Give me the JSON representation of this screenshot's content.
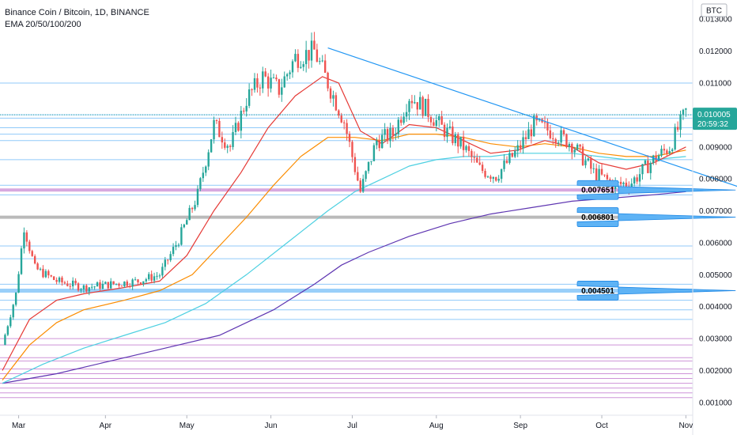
{
  "header": {
    "title": "Binance Coin / Bitcoin, 1D, BINANCE",
    "indicator": "EMA 20/50/100/200"
  },
  "currency_badge": "BTC",
  "price_label": {
    "price": "0.010005",
    "countdown": "20:59:32"
  },
  "colors": {
    "up": "#26a69a",
    "down": "#ef5350",
    "ema20": "#e53935",
    "ema50": "#fb8c00",
    "ema100": "#4dd0e1",
    "ema200": "#5e35b1",
    "trendline": "#2196f3",
    "callout": "#5eb3f5",
    "price_badge": "#26a69a",
    "hline_blue": "#90caf9",
    "hline_pink": "#ce93d8",
    "hline_gray": "#9e9e9e"
  },
  "chart_data": {
    "type": "line",
    "title": "Binance Coin / Bitcoin, 1D, BINANCE",
    "y_ticks": [
      "0.001000",
      "0.002000",
      "0.003000",
      "0.004000",
      "0.005000",
      "0.006000",
      "0.007000",
      "0.008000",
      "0.009000",
      "0.010000",
      "0.011000",
      "0.012000",
      "0.013000"
    ],
    "ylim": [
      0.0006,
      0.0136
    ],
    "x_ticks": [
      "Mar",
      "Apr",
      "May",
      "Jun",
      "Jul",
      "Aug",
      "Sep",
      "Oct",
      "Nov"
    ],
    "series": [
      {
        "key": "price",
        "values": [
          [
            0,
            0.0028
          ],
          [
            5,
            0.0044
          ],
          [
            8,
            0.0065
          ],
          [
            12,
            0.0052
          ],
          [
            20,
            0.0048
          ],
          [
            30,
            0.0046
          ],
          [
            40,
            0.0047
          ],
          [
            50,
            0.0048
          ],
          [
            58,
            0.005
          ],
          [
            65,
            0.0061
          ],
          [
            72,
            0.0075
          ],
          [
            78,
            0.0097
          ],
          [
            84,
            0.009
          ],
          [
            90,
            0.0105
          ],
          [
            96,
            0.0112
          ],
          [
            102,
            0.0108
          ],
          [
            108,
            0.0118
          ],
          [
            115,
            0.012
          ],
          [
            120,
            0.011
          ],
          [
            126,
            0.0098
          ],
          [
            132,
            0.0076
          ],
          [
            138,
            0.0092
          ],
          [
            144,
            0.0094
          ],
          [
            150,
            0.0106
          ],
          [
            156,
            0.0102
          ],
          [
            162,
            0.0096
          ],
          [
            170,
            0.009
          ],
          [
            176,
            0.0083
          ],
          [
            182,
            0.0081
          ],
          [
            190,
            0.0089
          ],
          [
            196,
            0.0097
          ],
          [
            202,
            0.0095
          ],
          [
            210,
            0.0091
          ],
          [
            218,
            0.0082
          ],
          [
            226,
            0.0078
          ],
          [
            232,
            0.0079
          ],
          [
            240,
            0.0086
          ],
          [
            246,
            0.009
          ],
          [
            252,
            0.0101
          ]
        ]
      },
      {
        "key": "ema20",
        "values": [
          [
            0,
            0.002
          ],
          [
            10,
            0.0036
          ],
          [
            20,
            0.0042
          ],
          [
            30,
            0.0044
          ],
          [
            45,
            0.0046
          ],
          [
            58,
            0.0048
          ],
          [
            68,
            0.0056
          ],
          [
            78,
            0.007
          ],
          [
            88,
            0.0082
          ],
          [
            98,
            0.0096
          ],
          [
            108,
            0.0106
          ],
          [
            118,
            0.0112
          ],
          [
            124,
            0.011
          ],
          [
            132,
            0.0095
          ],
          [
            140,
            0.0091
          ],
          [
            150,
            0.0097
          ],
          [
            160,
            0.0096
          ],
          [
            170,
            0.0092
          ],
          [
            180,
            0.0088
          ],
          [
            190,
            0.0089
          ],
          [
            200,
            0.0092
          ],
          [
            210,
            0.009
          ],
          [
            220,
            0.0085
          ],
          [
            230,
            0.0083
          ],
          [
            240,
            0.0085
          ],
          [
            252,
            0.009
          ]
        ]
      },
      {
        "key": "ema50",
        "values": [
          [
            0,
            0.0017
          ],
          [
            10,
            0.0028
          ],
          [
            20,
            0.0035
          ],
          [
            30,
            0.0039
          ],
          [
            45,
            0.0042
          ],
          [
            58,
            0.0045
          ],
          [
            70,
            0.005
          ],
          [
            80,
            0.0059
          ],
          [
            90,
            0.0068
          ],
          [
            100,
            0.0078
          ],
          [
            110,
            0.0087
          ],
          [
            120,
            0.0093
          ],
          [
            130,
            0.0093
          ],
          [
            140,
            0.0092
          ],
          [
            150,
            0.0094
          ],
          [
            160,
            0.0094
          ],
          [
            170,
            0.0093
          ],
          [
            180,
            0.0091
          ],
          [
            190,
            0.009
          ],
          [
            200,
            0.0091
          ],
          [
            210,
            0.009
          ],
          [
            220,
            0.0088
          ],
          [
            230,
            0.0087
          ],
          [
            240,
            0.0087
          ],
          [
            252,
            0.0089
          ]
        ]
      },
      {
        "key": "ema100",
        "values": [
          [
            0,
            0.0016
          ],
          [
            15,
            0.0022
          ],
          [
            30,
            0.0027
          ],
          [
            45,
            0.0031
          ],
          [
            60,
            0.0035
          ],
          [
            75,
            0.0041
          ],
          [
            90,
            0.005
          ],
          [
            105,
            0.006
          ],
          [
            120,
            0.007
          ],
          [
            130,
            0.0076
          ],
          [
            140,
            0.008
          ],
          [
            150,
            0.0084
          ],
          [
            160,
            0.0086
          ],
          [
            170,
            0.0087
          ],
          [
            180,
            0.0087
          ],
          [
            190,
            0.0088
          ],
          [
            200,
            0.0088
          ],
          [
            210,
            0.0088
          ],
          [
            220,
            0.0087
          ],
          [
            230,
            0.0086
          ],
          [
            240,
            0.0086
          ],
          [
            252,
            0.0087
          ]
        ]
      },
      {
        "key": "ema200",
        "values": [
          [
            0,
            0.0016
          ],
          [
            20,
            0.0019
          ],
          [
            40,
            0.0023
          ],
          [
            60,
            0.0027
          ],
          [
            80,
            0.0031
          ],
          [
            100,
            0.0039
          ],
          [
            115,
            0.0047
          ],
          [
            125,
            0.0053
          ],
          [
            135,
            0.0057
          ],
          [
            150,
            0.0062
          ],
          [
            165,
            0.0066
          ],
          [
            180,
            0.0069
          ],
          [
            195,
            0.0071
          ],
          [
            210,
            0.0073
          ],
          [
            225,
            0.0074
          ],
          [
            240,
            0.0075
          ],
          [
            252,
            0.0076
          ]
        ]
      }
    ],
    "trendline": {
      "x": [
        120,
        275
      ],
      "y": [
        0.0121,
        0.00765
      ]
    },
    "annotations": [
      {
        "text": "0.007651",
        "value": 0.007651,
        "x": 275
      },
      {
        "text": "0.006801",
        "value": 0.006801,
        "x": 275
      },
      {
        "text": "0.004501",
        "value": 0.004501,
        "x": 275
      }
    ],
    "horizontal_levels": {
      "thick_purple": [
        0.007651
      ],
      "thick_gray": [
        0.006801
      ],
      "thick_blue": [
        0.004501
      ],
      "thin_blue": [
        0.011,
        0.010005,
        0.0099,
        0.0096,
        0.0094,
        0.0092,
        0.0086,
        0.0078,
        0.0075,
        0.0059,
        0.0055,
        0.0047,
        0.0042,
        0.0039,
        0.0036
      ],
      "thin_pink": [
        0.003,
        0.0028,
        0.0024,
        0.0023,
        0.00205,
        0.0019,
        0.00175,
        0.0016,
        0.00145,
        0.0013,
        0.00115
      ]
    }
  }
}
